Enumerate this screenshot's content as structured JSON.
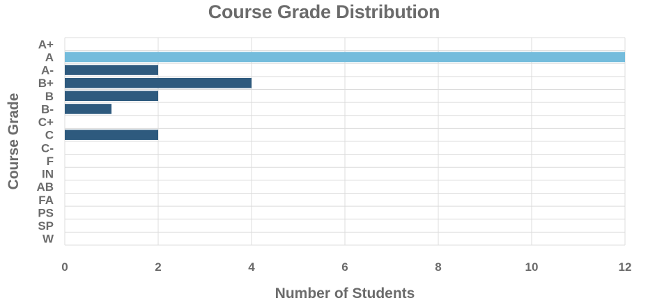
{
  "chart_data": {
    "type": "bar",
    "orientation": "horizontal",
    "title": "Course Grade Distribution",
    "xlabel": "Number of Students",
    "ylabel": "Course Grade",
    "categories": [
      "A+",
      "A",
      "A-",
      "B+",
      "B",
      "B-",
      "C+",
      "C",
      "C-",
      "F",
      "IN",
      "AB",
      "FA",
      "PS",
      "SP",
      "W"
    ],
    "values": [
      0,
      12,
      2,
      4,
      2,
      1,
      0,
      2,
      0,
      0,
      0,
      0,
      0,
      0,
      0,
      0
    ],
    "xlim": [
      0,
      12
    ],
    "xticks": [
      0,
      2,
      4,
      6,
      8,
      10,
      12
    ],
    "grid": true,
    "highlight_category": "A",
    "colors": {
      "bar": "#2e5a7e",
      "highlight": "#74bcdc",
      "grid": "#dcdcdc",
      "text": "#6b6b6b"
    }
  }
}
